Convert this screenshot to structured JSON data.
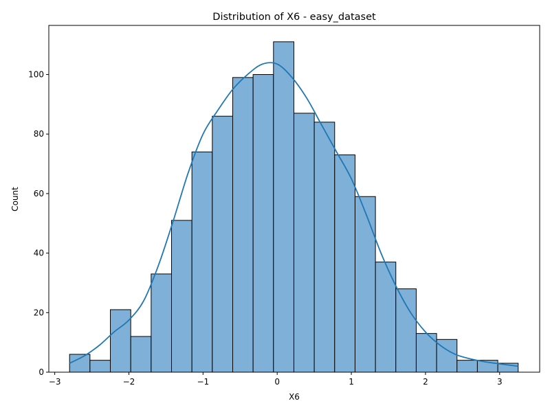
{
  "chart_data": {
    "type": "bar",
    "title": "Distribution of X6 - easy_dataset",
    "xlabel": "X6",
    "ylabel": "Count",
    "xlim": [
      -3.08,
      3.54
    ],
    "ylim": [
      0,
      116.5
    ],
    "x_ticks": [
      -3,
      -2,
      -1,
      0,
      1,
      2,
      3
    ],
    "x_tick_labels": [
      "−3",
      "−2",
      "−1",
      "0",
      "1",
      "2",
      "3"
    ],
    "y_ticks": [
      0,
      20,
      40,
      60,
      80,
      100
    ],
    "y_tick_labels": [
      "0",
      "20",
      "40",
      "60",
      "80",
      "100"
    ],
    "grid": false,
    "bar_color": "#7fb0d7",
    "bar_edge_color": "#000000",
    "kde_color": "#1f77b4",
    "bin_edges": [
      -2.8,
      -2.525,
      -2.25,
      -1.975,
      -1.7,
      -1.425,
      -1.15,
      -0.875,
      -0.6,
      -0.325,
      -0.05,
      0.225,
      0.5,
      0.775,
      1.05,
      1.325,
      1.6,
      1.875,
      2.15,
      2.425,
      2.7,
      2.975,
      3.25
    ],
    "counts": [
      6,
      4,
      21,
      12,
      33,
      51,
      74,
      86,
      99,
      100,
      111,
      87,
      84,
      73,
      59,
      37,
      28,
      13,
      11,
      4,
      4,
      3
    ],
    "kde_curve": {
      "x": [
        -2.8,
        -2.6,
        -2.4,
        -2.2,
        -2.0,
        -1.8,
        -1.6,
        -1.4,
        -1.2,
        -1.0,
        -0.8,
        -0.6,
        -0.4,
        -0.2,
        0.0,
        0.2,
        0.4,
        0.6,
        0.8,
        1.0,
        1.2,
        1.4,
        1.6,
        1.8,
        2.0,
        2.2,
        2.4,
        2.6,
        2.8,
        3.0,
        3.25
      ],
      "y": [
        3,
        5.5,
        9,
        13.5,
        17.5,
        24,
        36,
        51,
        67,
        80,
        88,
        95,
        100,
        103.5,
        103.5,
        99,
        92,
        83,
        74,
        65,
        53,
        40,
        29,
        20,
        13.5,
        9,
        6,
        4.5,
        3.5,
        2.8,
        2
      ]
    }
  }
}
